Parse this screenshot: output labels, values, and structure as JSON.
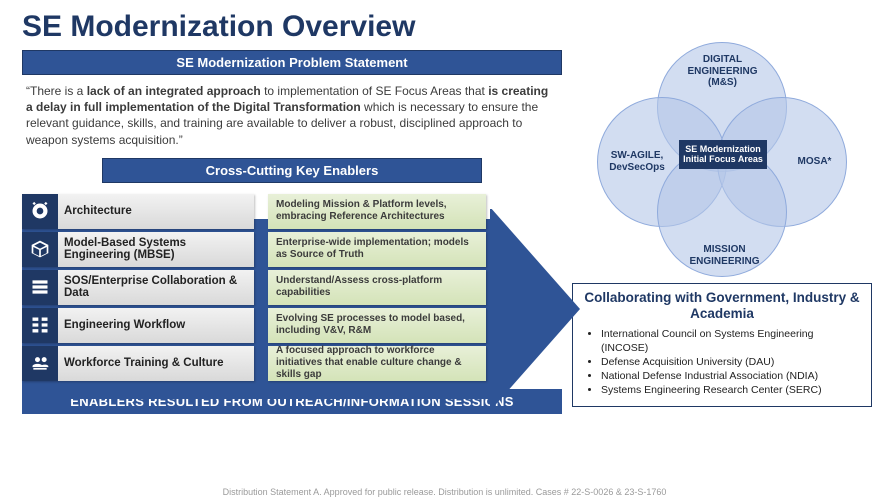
{
  "title": "SE Modernization Overview",
  "colors": {
    "navy": "#1f3864",
    "blue": "#2f5496",
    "venn_fill": "rgba(180,198,231,.6)",
    "venn_border": "#8faadc",
    "green_top": "#e8f0d8",
    "green_bot": "#d4e3b8",
    "gray_top": "#f2f2f2",
    "gray_bot": "#d9d9d9"
  },
  "problem": {
    "header": "SE Modernization Problem Statement",
    "text_pre": "“There is a ",
    "bold1": "lack of an integrated approach",
    "mid1": " to implementation of SE Focus Areas that ",
    "bold2": "is creating a delay in full implementation of the Digital Transformation",
    "mid2": " which is necessary to ensure the relevant guidance, skills, and training are available to deliver a robust, disciplined approach to weapon systems acquisition.”"
  },
  "enablers_header": "Cross-Cutting Key Enablers",
  "enablers": [
    {
      "label": "Architecture",
      "desc": "Modeling Mission & Platform levels, embracing Reference Architectures"
    },
    {
      "label": "Model-Based Systems Engineering (MBSE)",
      "desc": "Enterprise-wide implementation; models as Source of Truth"
    },
    {
      "label": "SOS/Enterprise Collaboration & Data",
      "desc": "Understand/Assess cross-platform capabilities"
    },
    {
      "label": "Engineering Workflow",
      "desc": "Evolving SE processes to model based, including V&V, R&M"
    },
    {
      "label": "Workforce Training & Culture",
      "desc": "A focused approach to workforce initiatives that enable culture change & skills gap"
    }
  ],
  "result_bar": "ENABLERS RESULTED FROM OUTREACH/INFORMATION SESSIONS",
  "venn": {
    "top": "DIGITAL ENGINEERING (M&S)",
    "left": "SW-AGILE, DevSecOps",
    "right": "MOSA*",
    "bottom": "MISSION ENGINEERING",
    "center": "SE Modernization Initial Focus Areas"
  },
  "collab": {
    "title": "Collaborating with Government, Industry & Academia",
    "items": [
      "International Council on Systems Engineering (INCOSE)",
      "Defense Acquisition University (DAU)",
      "National Defense Industrial Association (NDIA)",
      "Systems Engineering Research Center (SERC)"
    ]
  },
  "distribution": "Distribution Statement A. Approved for public release. Distribution is unlimited. Cases # 22-S-0026  & 23-S-1760"
}
